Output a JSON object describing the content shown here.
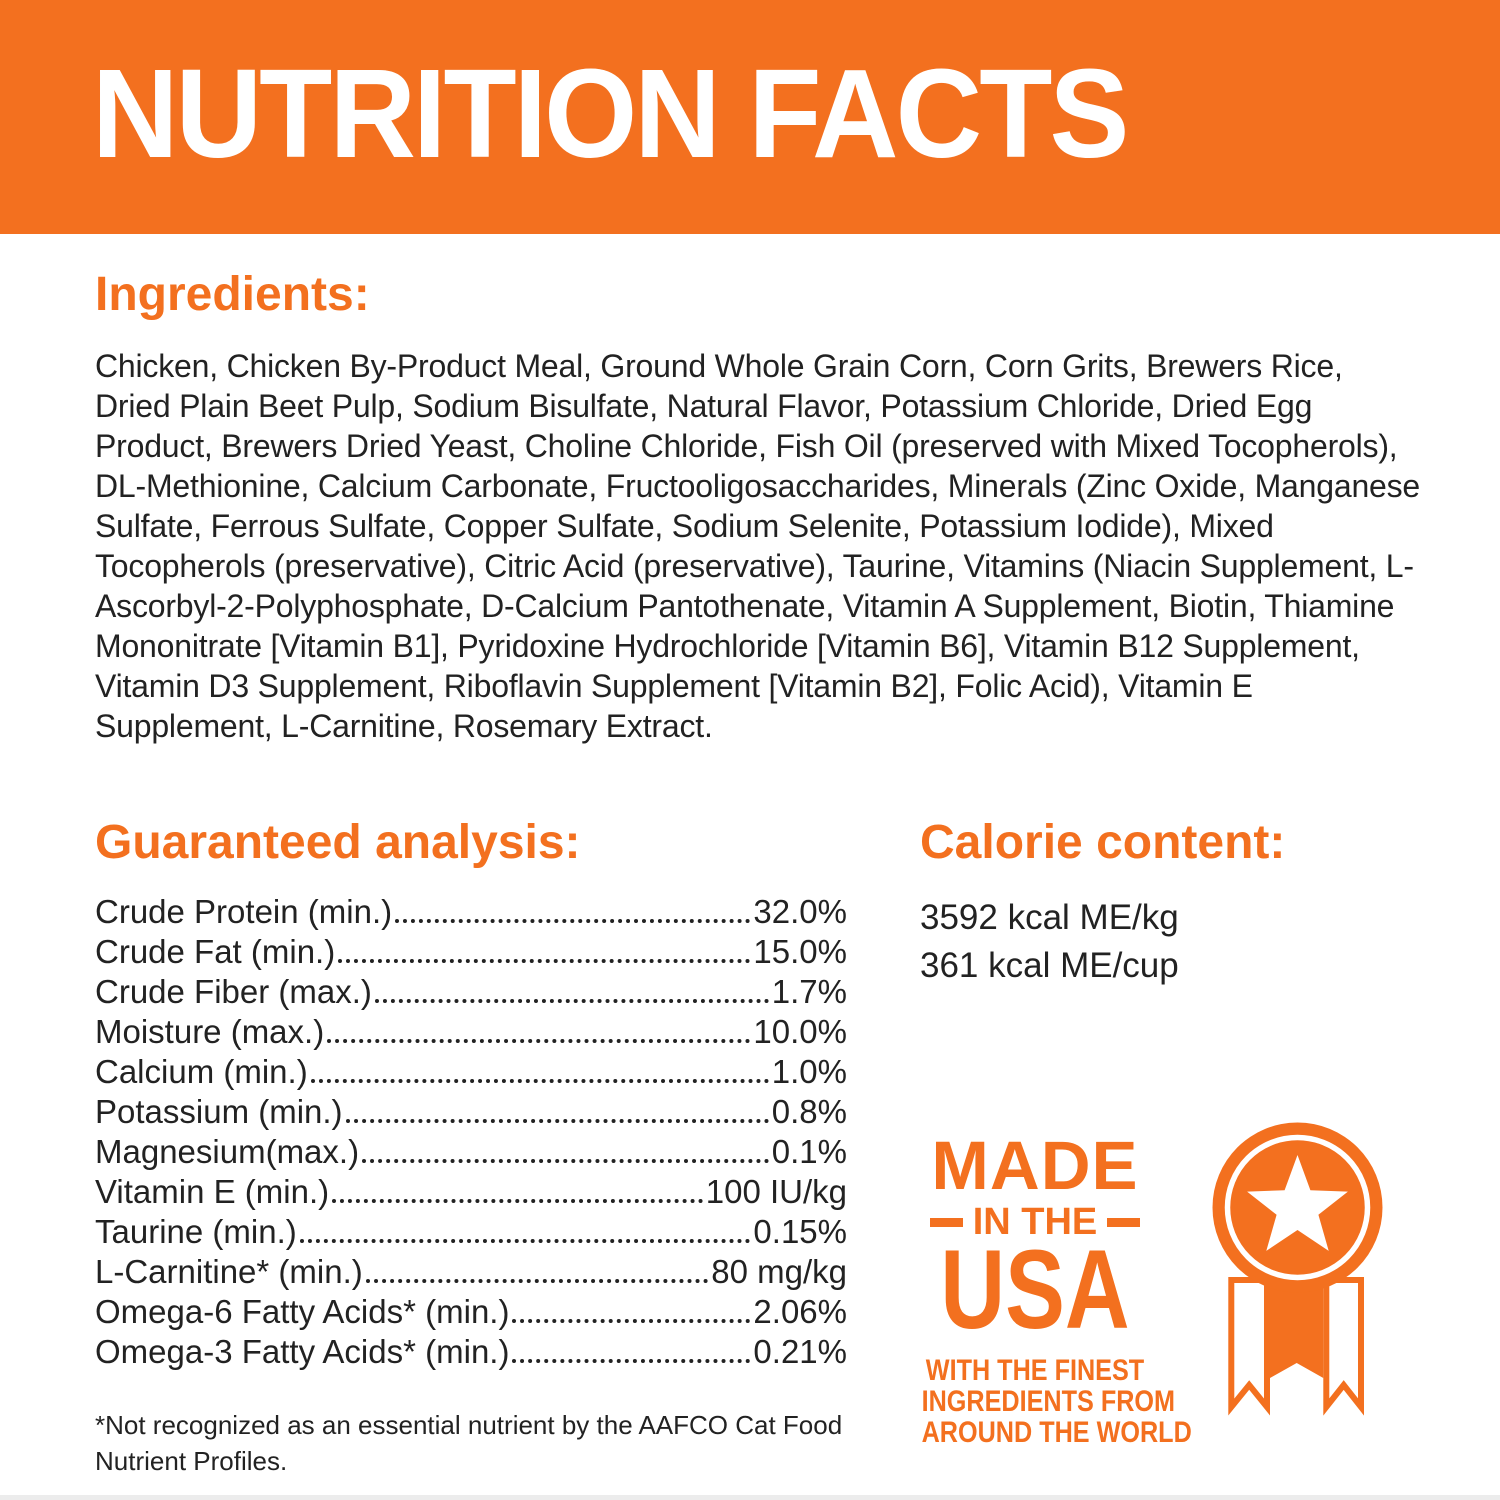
{
  "colors": {
    "orange": "#F3701F",
    "ink": "#222222",
    "paper": "#FFFFFF"
  },
  "banner": {
    "title": "NUTRITION FACTS"
  },
  "ingredients": {
    "heading": "Ingredients:",
    "text": "Chicken, Chicken By-Product Meal, Ground Whole Grain Corn, Corn Grits, Brewers Rice, Dried Plain Beet Pulp, Sodium Bisulfate, Natural Flavor, Potassium Chloride, Dried Egg Product, Brewers Dried Yeast, Choline Chloride, Fish Oil (preserved with Mixed Tocopherols), DL-Methionine, Calcium Carbonate, Fructooligosaccharides, Minerals (Zinc Oxide, Manganese Sulfate, Ferrous Sulfate, Copper Sulfate, Sodium Selenite, Potassium Iodide), Mixed Tocopherols (preservative), Citric Acid (preservative), Taurine, Vitamins (Niacin Supplement, L-Ascorbyl-2-Polyphosphate, D-Calcium Pantothenate, Vitamin A Supplement, Biotin, Thiamine Mononitrate [Vitamin B1], Pyridoxine Hydrochloride [Vitamin B6], Vitamin B12 Supplement, Vitamin D3 Supplement, Riboflavin Supplement [Vitamin B2], Folic Acid), Vitamin E Supplement, L-Carnitine, Rosemary Extract."
  },
  "guaranteed_analysis": {
    "heading": "Guaranteed analysis:",
    "rows": [
      {
        "label": "Crude Protein (min.)",
        "value": "32.0%"
      },
      {
        "label": "Crude Fat (min.)",
        "value": "15.0%"
      },
      {
        "label": "Crude Fiber (max.)",
        "value": "1.7%"
      },
      {
        "label": "Moisture (max.)",
        "value": "10.0%"
      },
      {
        "label": "Calcium (min.)",
        "value": "1.0%"
      },
      {
        "label": "Potassium (min.)",
        "value": "0.8%"
      },
      {
        "label": "Magnesium(max.)",
        "value": "0.1%"
      },
      {
        "label": "Vitamin E (min.)",
        "value": "100 IU/kg"
      },
      {
        "label": "Taurine (min.)",
        "value": "0.15%"
      },
      {
        "label": "L-Carnitine* (min.)",
        "value": "80 mg/kg"
      },
      {
        "label": "Omega-6 Fatty Acids* (min.)",
        "value": "2.06%"
      },
      {
        "label": "Omega-3 Fatty Acids* (min.)",
        "value": "0.21%"
      }
    ]
  },
  "calorie_content": {
    "heading": "Calorie content:",
    "lines": [
      "3592 kcal ME/kg",
      "361 kcal ME/cup"
    ]
  },
  "made_in_usa": {
    "line1": "MADE",
    "line2": "IN THE",
    "line3": "USA",
    "subtext": [
      "WITH THE FINEST",
      "INGREDIENTS FROM",
      "AROUND THE WORLD"
    ],
    "medal_icon": "medal-star-ribbon"
  },
  "footnote": "*Not recognized as an essential nutrient by the AAFCO Cat Food Nutrient Profiles."
}
